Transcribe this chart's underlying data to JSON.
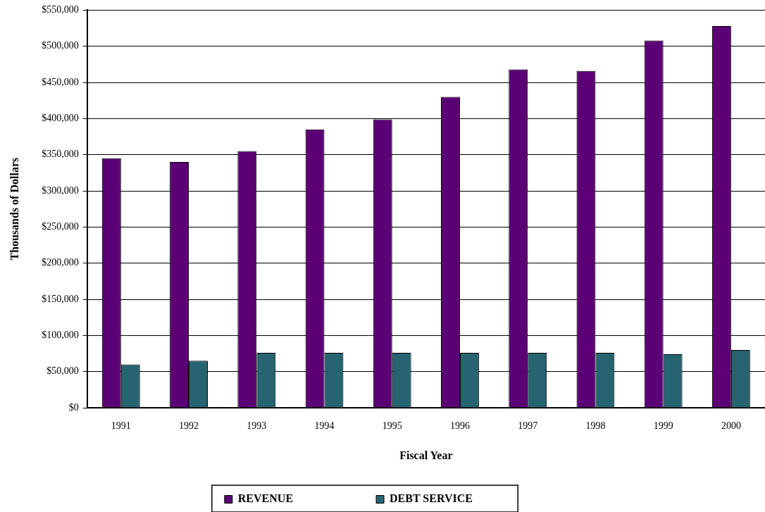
{
  "chart_data": {
    "type": "bar",
    "xlabel": "Fiscal Year",
    "ylabel": "Thousands of Dollars",
    "categories": [
      "1991",
      "1992",
      "1993",
      "1994",
      "1995",
      "1996",
      "1997",
      "1998",
      "1999",
      "2000"
    ],
    "series": [
      {
        "name": "REVENUE",
        "color": "#5c0075",
        "values": [
          345000,
          340000,
          355000,
          385000,
          399000,
          430000,
          468000,
          466000,
          508000,
          528000
        ]
      },
      {
        "name": "DEBT SERVICE",
        "color": "#256470",
        "values": [
          60000,
          65000,
          76000,
          76000,
          76000,
          76000,
          76000,
          76000,
          74000,
          80000
        ]
      }
    ],
    "ylim": [
      0,
      550000
    ],
    "yticks": [
      {
        "value": 0,
        "label": "$0"
      },
      {
        "value": 50000,
        "label": "$50,000"
      },
      {
        "value": 100000,
        "label": "$100,000"
      },
      {
        "value": 150000,
        "label": "$150,000"
      },
      {
        "value": 200000,
        "label": "$200,000"
      },
      {
        "value": 250000,
        "label": "$250,000"
      },
      {
        "value": 300000,
        "label": "$300,000"
      },
      {
        "value": 350000,
        "label": "$350,000"
      },
      {
        "value": 400000,
        "label": "$400,000"
      },
      {
        "value": 450000,
        "label": "$450,000"
      },
      {
        "value": 500000,
        "label": "$500,000"
      },
      {
        "value": 550000,
        "label": "$550,000"
      }
    ],
    "grid": "y",
    "legend": "bottom"
  }
}
